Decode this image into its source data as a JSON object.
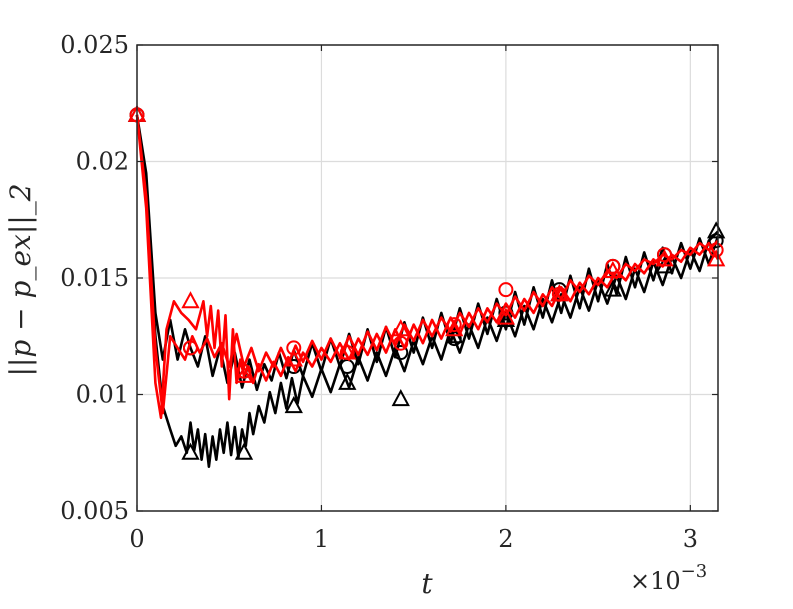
{
  "chart_data": {
    "type": "line",
    "title": "",
    "xlabel": "t",
    "ylabel": "||p − p_ex||_2",
    "x_multiplier_label": "×10",
    "x_multiplier_exp": "−3",
    "xlim": [
      0,
      3.15
    ],
    "ylim": [
      0.005,
      0.025
    ],
    "x_unit_scale": 0.001,
    "xticks": [
      "0",
      "1",
      "2",
      "3"
    ],
    "yticks": [
      "0.005",
      "0.01",
      "0.015",
      "0.02",
      "0.025"
    ],
    "xtick_values": [
      0,
      1,
      2,
      3
    ],
    "ytick_values": [
      0.005,
      0.01,
      0.015,
      0.02,
      0.025
    ],
    "grid": true,
    "legend": "none",
    "series": [
      {
        "color": "#000000",
        "marker": "triangle",
        "x": [
          0,
          0.05,
          0.1,
          0.14,
          0.18,
          0.21,
          0.24,
          0.27,
          0.29,
          0.31,
          0.33,
          0.35,
          0.37,
          0.39,
          0.41,
          0.43,
          0.45,
          0.47,
          0.49,
          0.51,
          0.53,
          0.55,
          0.57,
          0.59,
          0.61,
          0.63,
          0.66,
          0.69,
          0.72,
          0.75,
          0.78,
          0.81,
          0.84,
          0.87,
          0.9,
          0.95,
          1.0,
          1.05,
          1.1,
          1.15,
          1.2,
          1.25,
          1.3,
          1.35,
          1.4,
          1.45,
          1.5,
          1.55,
          1.6,
          1.65,
          1.7,
          1.75,
          1.8,
          1.85,
          1.9,
          1.95,
          2.0,
          2.05,
          2.1,
          2.15,
          2.2,
          2.25,
          2.3,
          2.35,
          2.4,
          2.45,
          2.5,
          2.55,
          2.6,
          2.65,
          2.7,
          2.75,
          2.8,
          2.85,
          2.9,
          2.95,
          3.0,
          3.05,
          3.1,
          3.15
        ],
        "y": [
          0.022,
          0.019,
          0.0125,
          0.0095,
          0.0085,
          0.0078,
          0.0082,
          0.0075,
          0.0088,
          0.0076,
          0.0085,
          0.0072,
          0.0083,
          0.0069,
          0.0082,
          0.0072,
          0.0085,
          0.0075,
          0.0088,
          0.0074,
          0.0086,
          0.0073,
          0.0085,
          0.0078,
          0.0092,
          0.0083,
          0.0095,
          0.0088,
          0.0101,
          0.0092,
          0.0105,
          0.0094,
          0.0107,
          0.0096,
          0.0108,
          0.0099,
          0.0111,
          0.0101,
          0.0113,
          0.0103,
          0.0116,
          0.0106,
          0.0118,
          0.0108,
          0.012,
          0.011,
          0.0123,
          0.0113,
          0.0125,
          0.0115,
          0.0128,
          0.0118,
          0.013,
          0.012,
          0.0133,
          0.0123,
          0.0135,
          0.0125,
          0.0138,
          0.0128,
          0.0141,
          0.0131,
          0.0143,
          0.0133,
          0.0146,
          0.0136,
          0.0149,
          0.0139,
          0.0151,
          0.0141,
          0.0154,
          0.0144,
          0.0157,
          0.0147,
          0.0159,
          0.015,
          0.0162,
          0.0153,
          0.0166,
          0.017
        ],
        "marker_x": [
          0,
          0.29,
          0.58,
          0.85,
          1.14,
          1.43,
          1.72,
          2.0,
          2.29,
          2.58,
          2.86,
          3.14
        ],
        "marker_y": [
          0.022,
          0.0075,
          0.0075,
          0.0095,
          0.0105,
          0.0098,
          0.0125,
          0.0132,
          0.0143,
          0.0145,
          0.0155,
          0.017
        ]
      },
      {
        "color": "#000000",
        "marker": "circle",
        "x": [
          0,
          0.05,
          0.1,
          0.14,
          0.18,
          0.22,
          0.26,
          0.29,
          0.33,
          0.37,
          0.41,
          0.45,
          0.49,
          0.53,
          0.57,
          0.61,
          0.65,
          0.69,
          0.73,
          0.77,
          0.81,
          0.85,
          0.9,
          0.95,
          1.0,
          1.05,
          1.1,
          1.15,
          1.2,
          1.25,
          1.3,
          1.35,
          1.4,
          1.45,
          1.5,
          1.55,
          1.6,
          1.65,
          1.7,
          1.75,
          1.8,
          1.85,
          1.9,
          1.95,
          2.0,
          2.05,
          2.1,
          2.15,
          2.2,
          2.25,
          2.3,
          2.35,
          2.4,
          2.45,
          2.5,
          2.55,
          2.6,
          2.65,
          2.7,
          2.75,
          2.8,
          2.85,
          2.9,
          2.95,
          3.0,
          3.05,
          3.1,
          3.15
        ],
        "y": [
          0.022,
          0.0195,
          0.0135,
          0.0115,
          0.0132,
          0.0115,
          0.0128,
          0.012,
          0.0112,
          0.0125,
          0.0108,
          0.012,
          0.0105,
          0.0118,
          0.0103,
          0.0115,
          0.0102,
          0.0113,
          0.0106,
          0.0118,
          0.0107,
          0.0119,
          0.0108,
          0.0122,
          0.011,
          0.0124,
          0.0112,
          0.0126,
          0.0113,
          0.0128,
          0.0114,
          0.0129,
          0.0116,
          0.0131,
          0.0118,
          0.0133,
          0.012,
          0.0135,
          0.0122,
          0.0137,
          0.0124,
          0.0139,
          0.0126,
          0.0141,
          0.0128,
          0.0144,
          0.013,
          0.0146,
          0.0133,
          0.0149,
          0.0135,
          0.0151,
          0.0137,
          0.0154,
          0.014,
          0.0156,
          0.0143,
          0.0159,
          0.0146,
          0.0161,
          0.0149,
          0.0163,
          0.0152,
          0.0165,
          0.0154,
          0.0167,
          0.0156,
          0.0168
        ],
        "marker_x": [
          0,
          0.29,
          0.58,
          0.85,
          1.14,
          1.43,
          1.72,
          2.0,
          2.29,
          2.58,
          2.86,
          3.14
        ],
        "marker_y": [
          0.022,
          0.012,
          0.011,
          0.0112,
          0.0112,
          0.0118,
          0.0124,
          0.0135,
          0.0145,
          0.0155,
          0.016,
          0.0166
        ]
      },
      {
        "color": "#ff0000",
        "marker": "triangle",
        "x": [
          0,
          0.05,
          0.1,
          0.13,
          0.16,
          0.2,
          0.24,
          0.28,
          0.32,
          0.36,
          0.38,
          0.4,
          0.42,
          0.44,
          0.46,
          0.48,
          0.5,
          0.52,
          0.54,
          0.56,
          0.58,
          0.6,
          0.63,
          0.66,
          0.7,
          0.74,
          0.78,
          0.82,
          0.86,
          0.9,
          0.95,
          1.0,
          1.05,
          1.1,
          1.15,
          1.2,
          1.25,
          1.3,
          1.35,
          1.4,
          1.45,
          1.5,
          1.55,
          1.6,
          1.65,
          1.7,
          1.75,
          1.8,
          1.85,
          1.9,
          1.95,
          2.0,
          2.05,
          2.1,
          2.15,
          2.2,
          2.25,
          2.3,
          2.35,
          2.4,
          2.45,
          2.5,
          2.55,
          2.6,
          2.65,
          2.7,
          2.75,
          2.8,
          2.85,
          2.9,
          2.95,
          3.0,
          3.05,
          3.1,
          3.15
        ],
        "y": [
          0.022,
          0.018,
          0.0105,
          0.009,
          0.0128,
          0.014,
          0.0135,
          0.0132,
          0.0128,
          0.014,
          0.0125,
          0.0138,
          0.012,
          0.0136,
          0.0112,
          0.0134,
          0.0098,
          0.0128,
          0.0105,
          0.0115,
          0.0108,
          0.0112,
          0.0105,
          0.0113,
          0.0106,
          0.0114,
          0.0108,
          0.0116,
          0.011,
          0.0118,
          0.0112,
          0.012,
          0.0114,
          0.0122,
          0.0115,
          0.0124,
          0.0117,
          0.0126,
          0.0118,
          0.0128,
          0.012,
          0.013,
          0.0122,
          0.0132,
          0.0124,
          0.0133,
          0.0126,
          0.0135,
          0.0128,
          0.0137,
          0.0131,
          0.0139,
          0.0133,
          0.0141,
          0.0135,
          0.0143,
          0.0138,
          0.0146,
          0.014,
          0.0148,
          0.0143,
          0.015,
          0.0146,
          0.0153,
          0.0149,
          0.0156,
          0.0152,
          0.0158,
          0.0155,
          0.016,
          0.0157,
          0.0163,
          0.016,
          0.0165,
          0.0158
        ],
        "marker_x": [
          0,
          0.29,
          0.58,
          0.85,
          1.14,
          1.43,
          1.72,
          2.0,
          2.29,
          2.58,
          2.86,
          3.14
        ],
        "marker_y": [
          0.022,
          0.014,
          0.0108,
          0.0115,
          0.0118,
          0.0128,
          0.0128,
          0.0133,
          0.0143,
          0.0153,
          0.0158,
          0.0158
        ]
      },
      {
        "color": "#ff0000",
        "marker": "circle",
        "x": [
          0,
          0.05,
          0.1,
          0.14,
          0.18,
          0.22,
          0.26,
          0.3,
          0.34,
          0.38,
          0.42,
          0.46,
          0.5,
          0.54,
          0.58,
          0.62,
          0.66,
          0.7,
          0.74,
          0.78,
          0.82,
          0.86,
          0.9,
          0.95,
          1.0,
          1.05,
          1.1,
          1.15,
          1.2,
          1.25,
          1.3,
          1.35,
          1.4,
          1.45,
          1.5,
          1.55,
          1.6,
          1.65,
          1.7,
          1.75,
          1.8,
          1.85,
          1.9,
          1.95,
          2.0,
          2.05,
          2.1,
          2.15,
          2.2,
          2.25,
          2.3,
          2.35,
          2.4,
          2.45,
          2.5,
          2.55,
          2.6,
          2.65,
          2.7,
          2.75,
          2.8,
          2.85,
          2.9,
          2.95,
          3.0,
          3.05,
          3.1,
          3.15
        ],
        "y": [
          0.022,
          0.0185,
          0.012,
          0.0092,
          0.0125,
          0.012,
          0.0115,
          0.0125,
          0.0118,
          0.0124,
          0.0116,
          0.0122,
          0.0112,
          0.0126,
          0.0112,
          0.012,
          0.011,
          0.0118,
          0.0112,
          0.012,
          0.0113,
          0.0121,
          0.0114,
          0.0123,
          0.0115,
          0.0124,
          0.0116,
          0.0125,
          0.0117,
          0.0127,
          0.0119,
          0.0129,
          0.0121,
          0.013,
          0.0123,
          0.0132,
          0.0125,
          0.0133,
          0.0127,
          0.0135,
          0.0129,
          0.0137,
          0.0131,
          0.0139,
          0.0134,
          0.0142,
          0.0136,
          0.0144,
          0.0138,
          0.0146,
          0.0141,
          0.0149,
          0.0144,
          0.0151,
          0.0147,
          0.0153,
          0.015,
          0.0156,
          0.0153,
          0.0158,
          0.0156,
          0.016,
          0.0158,
          0.0162,
          0.016,
          0.0165,
          0.0162,
          0.0166
        ],
        "marker_x": [
          0,
          0.29,
          0.58,
          0.85,
          1.14,
          1.43,
          1.72,
          2.0,
          2.29,
          2.58,
          2.86,
          3.14
        ],
        "marker_y": [
          0.022,
          0.012,
          0.011,
          0.012,
          0.0118,
          0.0122,
          0.013,
          0.0145,
          0.0143,
          0.0155,
          0.016,
          0.0162
        ]
      }
    ]
  }
}
